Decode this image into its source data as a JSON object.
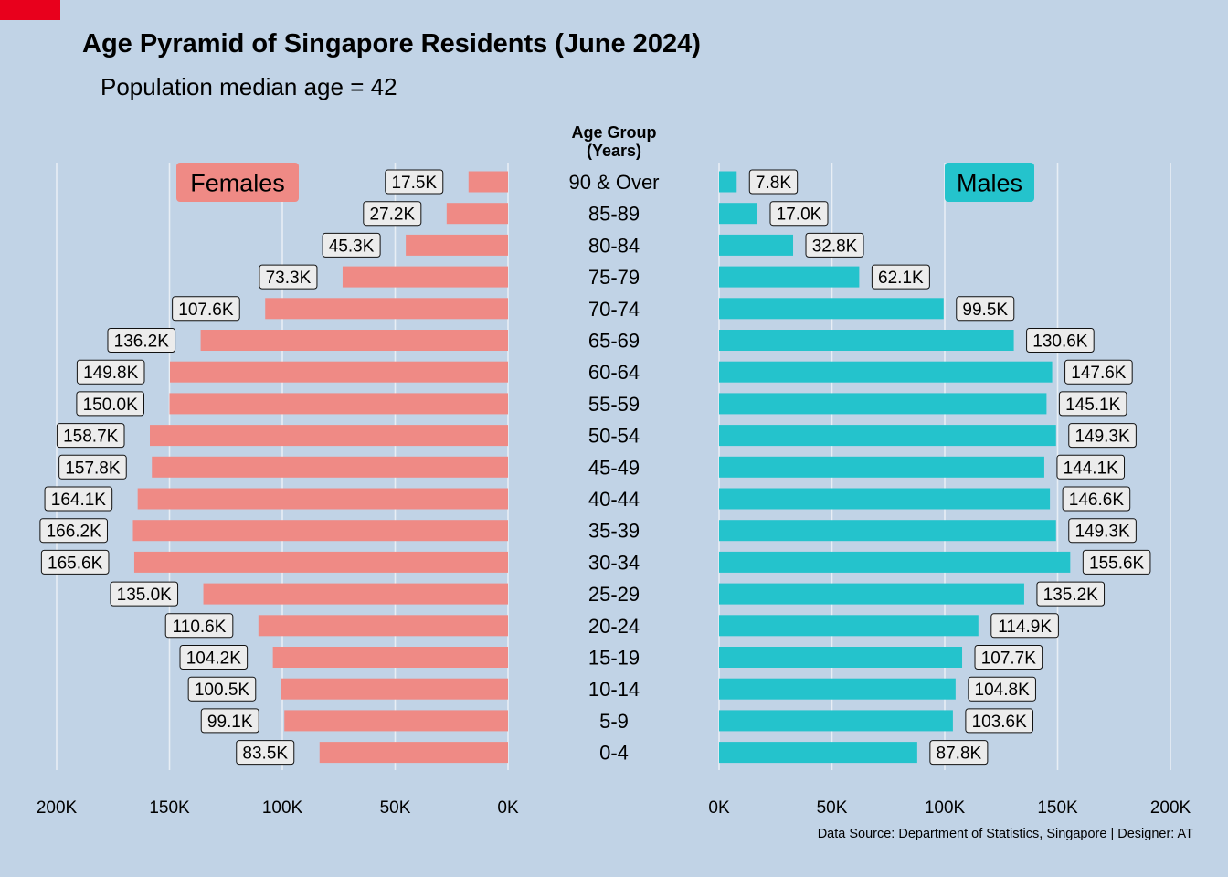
{
  "title": "Age Pyramid of Singapore Residents (June 2024)",
  "subtitle": "Population median age = 42",
  "caption": "Data Source: Department of Statistics, Singapore | Designer: AT",
  "colors": {
    "background": "#c1d3e6",
    "females": "#ef8a85",
    "males": "#24c3cc",
    "corner": "#e8001c"
  },
  "chart_data": {
    "type": "bar",
    "orientation": "horizontal",
    "center_header": [
      "Age Group",
      "(Years)"
    ],
    "categories": [
      "90 & Over",
      "85-89",
      "80-84",
      "75-79",
      "70-74",
      "65-69",
      "60-64",
      "55-59",
      "50-54",
      "45-49",
      "40-44",
      "35-39",
      "30-34",
      "25-29",
      "20-24",
      "15-19",
      "10-14",
      "5-9",
      "0-4"
    ],
    "series": [
      {
        "name": "Females",
        "side": "left",
        "values": [
          17.5,
          27.2,
          45.3,
          73.3,
          107.6,
          136.2,
          149.8,
          150.0,
          158.7,
          157.8,
          164.1,
          166.2,
          165.6,
          135.0,
          110.6,
          104.2,
          100.5,
          99.1,
          83.5
        ],
        "labels": [
          "17.5K",
          "27.2K",
          "45.3K",
          "73.3K",
          "107.6K",
          "136.2K",
          "149.8K",
          "150.0K",
          "158.7K",
          "157.8K",
          "164.1K",
          "166.2K",
          "165.6K",
          "135.0K",
          "110.6K",
          "104.2K",
          "100.5K",
          "99.1K",
          "83.5K"
        ]
      },
      {
        "name": "Males",
        "side": "right",
        "values": [
          7.8,
          17.0,
          32.8,
          62.1,
          99.5,
          130.6,
          147.6,
          145.1,
          149.3,
          144.1,
          146.6,
          149.3,
          155.6,
          135.2,
          114.9,
          107.7,
          104.8,
          103.6,
          87.8
        ],
        "labels": [
          "7.8K",
          "17.0K",
          "32.8K",
          "62.1K",
          "99.5K",
          "130.6K",
          "147.6K",
          "145.1K",
          "149.3K",
          "144.1K",
          "146.6K",
          "149.3K",
          "155.6K",
          "135.2K",
          "114.9K",
          "107.7K",
          "104.8K",
          "103.6K",
          "87.8K"
        ]
      }
    ],
    "xlim": [
      0,
      200
    ],
    "left_ticks": [
      "200K",
      "150K",
      "100K",
      "50K",
      "0K"
    ],
    "right_ticks": [
      "0K",
      "50K",
      "100K",
      "150K",
      "200K"
    ],
    "tick_values": [
      0,
      50,
      100,
      150,
      200
    ],
    "grid": "vertical"
  }
}
